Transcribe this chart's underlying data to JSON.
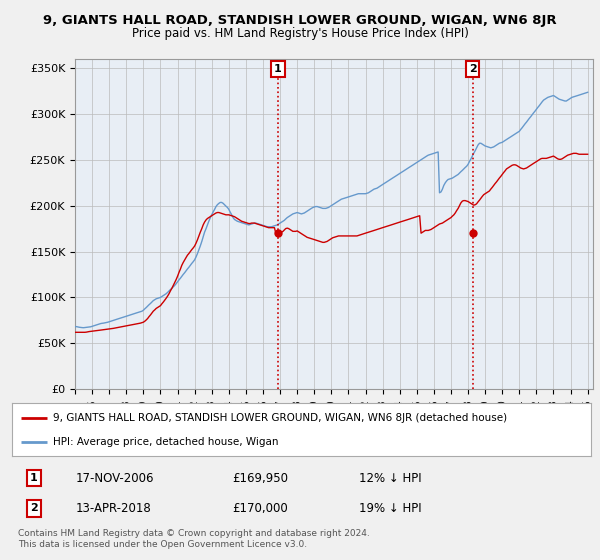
{
  "title": "9, GIANTS HALL ROAD, STANDISH LOWER GROUND, WIGAN, WN6 8JR",
  "subtitle": "Price paid vs. HM Land Registry's House Price Index (HPI)",
  "ylabel_ticks": [
    "£0",
    "£50K",
    "£100K",
    "£150K",
    "£200K",
    "£250K",
    "£300K",
    "£350K"
  ],
  "ytick_vals": [
    0,
    50000,
    100000,
    150000,
    200000,
    250000,
    300000,
    350000
  ],
  "ylim": [
    0,
    360000
  ],
  "xlim_start": 1995.0,
  "xlim_end": 2025.3,
  "sale1_x": 2006.88,
  "sale1_y": 169950,
  "sale2_x": 2018.28,
  "sale2_y": 170000,
  "sale1_date": "17-NOV-2006",
  "sale1_price": "£169,950",
  "sale1_hpi": "12% ↓ HPI",
  "sale2_date": "13-APR-2018",
  "sale2_price": "£170,000",
  "sale2_hpi": "19% ↓ HPI",
  "line_color_red": "#cc0000",
  "line_color_blue": "#6699cc",
  "shade_color": "#dde8f5",
  "background_color": "#f0f0f0",
  "plot_bg": "#e8eef5",
  "legend_line1": "9, GIANTS HALL ROAD, STANDISH LOWER GROUND, WIGAN, WN6 8JR (detached house)",
  "legend_line2": "HPI: Average price, detached house, Wigan",
  "footnote": "Contains HM Land Registry data © Crown copyright and database right 2024.\nThis data is licensed under the Open Government Licence v3.0.",
  "hpi_years": [
    1995.0,
    1995.08,
    1995.17,
    1995.25,
    1995.33,
    1995.42,
    1995.5,
    1995.58,
    1995.67,
    1995.75,
    1995.83,
    1995.92,
    1996.0,
    1996.08,
    1996.17,
    1996.25,
    1996.33,
    1996.42,
    1996.5,
    1996.58,
    1996.67,
    1996.75,
    1996.83,
    1996.92,
    1997.0,
    1997.08,
    1997.17,
    1997.25,
    1997.33,
    1997.42,
    1997.5,
    1997.58,
    1997.67,
    1997.75,
    1997.83,
    1997.92,
    1998.0,
    1998.08,
    1998.17,
    1998.25,
    1998.33,
    1998.42,
    1998.5,
    1998.58,
    1998.67,
    1998.75,
    1998.83,
    1998.92,
    1999.0,
    1999.08,
    1999.17,
    1999.25,
    1999.33,
    1999.42,
    1999.5,
    1999.58,
    1999.67,
    1999.75,
    1999.83,
    1999.92,
    2000.0,
    2000.08,
    2000.17,
    2000.25,
    2000.33,
    2000.42,
    2000.5,
    2000.58,
    2000.67,
    2000.75,
    2000.83,
    2000.92,
    2001.0,
    2001.08,
    2001.17,
    2001.25,
    2001.33,
    2001.42,
    2001.5,
    2001.58,
    2001.67,
    2001.75,
    2001.83,
    2001.92,
    2002.0,
    2002.08,
    2002.17,
    2002.25,
    2002.33,
    2002.42,
    2002.5,
    2002.58,
    2002.67,
    2002.75,
    2002.83,
    2002.92,
    2003.0,
    2003.08,
    2003.17,
    2003.25,
    2003.33,
    2003.42,
    2003.5,
    2003.58,
    2003.67,
    2003.75,
    2003.83,
    2003.92,
    2004.0,
    2004.08,
    2004.17,
    2004.25,
    2004.33,
    2004.42,
    2004.5,
    2004.58,
    2004.67,
    2004.75,
    2004.83,
    2004.92,
    2005.0,
    2005.08,
    2005.17,
    2005.25,
    2005.33,
    2005.42,
    2005.5,
    2005.58,
    2005.67,
    2005.75,
    2005.83,
    2005.92,
    2006.0,
    2006.08,
    2006.17,
    2006.25,
    2006.33,
    2006.42,
    2006.5,
    2006.58,
    2006.67,
    2006.75,
    2006.83,
    2006.92,
    2007.0,
    2007.08,
    2007.17,
    2007.25,
    2007.33,
    2007.42,
    2007.5,
    2007.58,
    2007.67,
    2007.75,
    2007.83,
    2007.92,
    2008.0,
    2008.08,
    2008.17,
    2008.25,
    2008.33,
    2008.42,
    2008.5,
    2008.58,
    2008.67,
    2008.75,
    2008.83,
    2008.92,
    2009.0,
    2009.08,
    2009.17,
    2009.25,
    2009.33,
    2009.42,
    2009.5,
    2009.58,
    2009.67,
    2009.75,
    2009.83,
    2009.92,
    2010.0,
    2010.08,
    2010.17,
    2010.25,
    2010.33,
    2010.42,
    2010.5,
    2010.58,
    2010.67,
    2010.75,
    2010.83,
    2010.92,
    2011.0,
    2011.08,
    2011.17,
    2011.25,
    2011.33,
    2011.42,
    2011.5,
    2011.58,
    2011.67,
    2011.75,
    2011.83,
    2011.92,
    2012.0,
    2012.08,
    2012.17,
    2012.25,
    2012.33,
    2012.42,
    2012.5,
    2012.58,
    2012.67,
    2012.75,
    2012.83,
    2012.92,
    2013.0,
    2013.08,
    2013.17,
    2013.25,
    2013.33,
    2013.42,
    2013.5,
    2013.58,
    2013.67,
    2013.75,
    2013.83,
    2013.92,
    2014.0,
    2014.08,
    2014.17,
    2014.25,
    2014.33,
    2014.42,
    2014.5,
    2014.58,
    2014.67,
    2014.75,
    2014.83,
    2014.92,
    2015.0,
    2015.08,
    2015.17,
    2015.25,
    2015.33,
    2015.42,
    2015.5,
    2015.58,
    2015.67,
    2015.75,
    2015.83,
    2015.92,
    2016.0,
    2016.08,
    2016.17,
    2016.25,
    2016.33,
    2016.42,
    2016.5,
    2016.58,
    2016.67,
    2016.75,
    2016.83,
    2016.92,
    2017.0,
    2017.08,
    2017.17,
    2017.25,
    2017.33,
    2017.42,
    2017.5,
    2017.58,
    2017.67,
    2017.75,
    2017.83,
    2017.92,
    2018.0,
    2018.08,
    2018.17,
    2018.25,
    2018.33,
    2018.42,
    2018.5,
    2018.58,
    2018.67,
    2018.75,
    2018.83,
    2018.92,
    2019.0,
    2019.08,
    2019.17,
    2019.25,
    2019.33,
    2019.42,
    2019.5,
    2019.58,
    2019.67,
    2019.75,
    2019.83,
    2019.92,
    2020.0,
    2020.08,
    2020.17,
    2020.25,
    2020.33,
    2020.42,
    2020.5,
    2020.58,
    2020.67,
    2020.75,
    2020.83,
    2020.92,
    2021.0,
    2021.08,
    2021.17,
    2021.25,
    2021.33,
    2021.42,
    2021.5,
    2021.58,
    2021.67,
    2021.75,
    2021.83,
    2021.92,
    2022.0,
    2022.08,
    2022.17,
    2022.25,
    2022.33,
    2022.42,
    2022.5,
    2022.58,
    2022.67,
    2022.75,
    2022.83,
    2022.92,
    2023.0,
    2023.08,
    2023.17,
    2023.25,
    2023.33,
    2023.42,
    2023.5,
    2023.58,
    2023.67,
    2023.75,
    2023.83,
    2023.92,
    2024.0,
    2024.08,
    2024.17,
    2024.25,
    2024.33,
    2024.42,
    2024.5,
    2024.58,
    2024.67,
    2024.75,
    2024.83,
    2024.92,
    2025.0
  ],
  "hpi_vals": [
    68000,
    68200,
    67800,
    67500,
    67300,
    67100,
    67000,
    67200,
    67400,
    67600,
    67800,
    68000,
    68500,
    69000,
    69500,
    70000,
    70500,
    71000,
    71500,
    71800,
    72000,
    72300,
    72600,
    73000,
    73500,
    74000,
    74500,
    75000,
    75500,
    76000,
    76500,
    77000,
    77500,
    78000,
    78500,
    79000,
    79500,
    80000,
    80500,
    81000,
    81500,
    82000,
    82500,
    83000,
    83500,
    84000,
    84500,
    85000,
    86000,
    87500,
    89000,
    90500,
    92000,
    93500,
    95000,
    96500,
    97500,
    98500,
    99000,
    99500,
    100000,
    101000,
    102000,
    103000,
    104000,
    105500,
    107000,
    108500,
    110000,
    111500,
    113000,
    115000,
    117000,
    119000,
    121000,
    123000,
    125000,
    127000,
    129000,
    131000,
    133000,
    135000,
    137000,
    139000,
    141000,
    144000,
    148000,
    152000,
    156000,
    161000,
    166000,
    171000,
    175000,
    179000,
    183000,
    187000,
    190000,
    193000,
    196000,
    199000,
    201000,
    202500,
    203500,
    203500,
    202500,
    201000,
    199500,
    198000,
    196000,
    193000,
    190000,
    187000,
    185000,
    184000,
    183000,
    182500,
    182000,
    181500,
    181000,
    180500,
    180000,
    179500,
    179000,
    179500,
    180000,
    180500,
    181000,
    181000,
    180500,
    180000,
    179500,
    179000,
    178500,
    178000,
    177500,
    177000,
    177000,
    177000,
    177000,
    177500,
    178000,
    178500,
    179000,
    180000,
    181000,
    182000,
    183000,
    184000,
    185500,
    187000,
    188000,
    189000,
    190000,
    191000,
    191500,
    192000,
    192500,
    192000,
    191500,
    191000,
    191500,
    192000,
    193000,
    194000,
    195000,
    196000,
    197000,
    198000,
    198500,
    199000,
    199000,
    198500,
    198000,
    197500,
    197000,
    197000,
    197000,
    197500,
    198000,
    199000,
    200000,
    201000,
    202000,
    203000,
    204000,
    205000,
    206000,
    207000,
    207500,
    208000,
    208500,
    209000,
    209500,
    210000,
    210500,
    211000,
    211500,
    212000,
    212500,
    213000,
    213000,
    213000,
    213000,
    213000,
    213000,
    213500,
    214000,
    215000,
    216000,
    217000,
    218000,
    218500,
    219000,
    220000,
    221000,
    222000,
    223000,
    224000,
    225000,
    226000,
    227000,
    228000,
    229000,
    230000,
    231000,
    232000,
    233000,
    234000,
    235000,
    236000,
    237000,
    238000,
    239000,
    240000,
    241000,
    242000,
    243000,
    244000,
    245000,
    246000,
    247000,
    248000,
    249000,
    250000,
    251000,
    252000,
    253000,
    254000,
    255000,
    255500,
    256000,
    256500,
    257000,
    257500,
    258000,
    258500,
    214000,
    215000,
    218000,
    222000,
    225000,
    227000,
    228500,
    229000,
    229500,
    230000,
    231000,
    232000,
    233000,
    234000,
    235500,
    237000,
    238500,
    240000,
    241500,
    243000,
    245000,
    248000,
    251000,
    254000,
    257000,
    260000,
    263000,
    266000,
    268000,
    268000,
    267000,
    266000,
    265000,
    264500,
    264000,
    263500,
    263000,
    263500,
    264000,
    265000,
    266000,
    267000,
    268000,
    268500,
    269000,
    270000,
    271000,
    272000,
    273000,
    274000,
    275000,
    276000,
    277000,
    278000,
    279000,
    280000,
    281000,
    283000,
    285000,
    287000,
    289000,
    291000,
    293000,
    295000,
    297000,
    299000,
    301000,
    303000,
    305000,
    307000,
    309000,
    311000,
    313000,
    315000,
    316000,
    317000,
    318000,
    318500,
    319000,
    319500,
    320000,
    319000,
    318000,
    317000,
    316000,
    315500,
    315000,
    314500,
    314000,
    314000,
    315000,
    316000,
    317000,
    318000,
    318500,
    319000,
    319500,
    320000,
    320500,
    321000,
    321500,
    322000,
    322500,
    323000,
    323500
  ],
  "red_years": [
    1995.0,
    1995.08,
    1995.17,
    1995.25,
    1995.33,
    1995.42,
    1995.5,
    1995.58,
    1995.67,
    1995.75,
    1995.83,
    1995.92,
    1996.0,
    1996.08,
    1996.17,
    1996.25,
    1996.33,
    1996.42,
    1996.5,
    1996.58,
    1996.67,
    1996.75,
    1996.83,
    1996.92,
    1997.0,
    1997.08,
    1997.17,
    1997.25,
    1997.33,
    1997.42,
    1997.5,
    1997.58,
    1997.67,
    1997.75,
    1997.83,
    1997.92,
    1998.0,
    1998.08,
    1998.17,
    1998.25,
    1998.33,
    1998.42,
    1998.5,
    1998.58,
    1998.67,
    1998.75,
    1998.83,
    1998.92,
    1999.0,
    1999.08,
    1999.17,
    1999.25,
    1999.33,
    1999.42,
    1999.5,
    1999.58,
    1999.67,
    1999.75,
    1999.83,
    1999.92,
    2000.0,
    2000.08,
    2000.17,
    2000.25,
    2000.33,
    2000.42,
    2000.5,
    2000.58,
    2000.67,
    2000.75,
    2000.83,
    2000.92,
    2001.0,
    2001.08,
    2001.17,
    2001.25,
    2001.33,
    2001.42,
    2001.5,
    2001.58,
    2001.67,
    2001.75,
    2001.83,
    2001.92,
    2002.0,
    2002.08,
    2002.17,
    2002.25,
    2002.33,
    2002.42,
    2002.5,
    2002.58,
    2002.67,
    2002.75,
    2002.83,
    2002.92,
    2003.0,
    2003.08,
    2003.17,
    2003.25,
    2003.33,
    2003.42,
    2003.5,
    2003.58,
    2003.67,
    2003.75,
    2003.83,
    2003.92,
    2004.0,
    2004.08,
    2004.17,
    2004.25,
    2004.33,
    2004.42,
    2004.5,
    2004.58,
    2004.67,
    2004.75,
    2004.83,
    2004.92,
    2005.0,
    2005.08,
    2005.17,
    2005.25,
    2005.33,
    2005.42,
    2005.5,
    2005.58,
    2005.67,
    2005.75,
    2005.83,
    2005.92,
    2006.0,
    2006.08,
    2006.17,
    2006.25,
    2006.33,
    2006.42,
    2006.5,
    2006.58,
    2006.67,
    2006.75,
    2006.83,
    2006.92,
    2007.0,
    2007.08,
    2007.17,
    2007.25,
    2007.33,
    2007.42,
    2007.5,
    2007.58,
    2007.67,
    2007.75,
    2007.83,
    2007.92,
    2008.0,
    2008.08,
    2008.17,
    2008.25,
    2008.33,
    2008.42,
    2008.5,
    2008.58,
    2008.67,
    2008.75,
    2008.83,
    2008.92,
    2009.0,
    2009.08,
    2009.17,
    2009.25,
    2009.33,
    2009.42,
    2009.5,
    2009.58,
    2009.67,
    2009.75,
    2009.83,
    2009.92,
    2010.0,
    2010.08,
    2010.17,
    2010.25,
    2010.33,
    2010.42,
    2010.5,
    2010.58,
    2010.67,
    2010.75,
    2010.83,
    2010.92,
    2011.0,
    2011.08,
    2011.17,
    2011.25,
    2011.33,
    2011.42,
    2011.5,
    2011.58,
    2011.67,
    2011.75,
    2011.83,
    2011.92,
    2012.0,
    2012.08,
    2012.17,
    2012.25,
    2012.33,
    2012.42,
    2012.5,
    2012.58,
    2012.67,
    2012.75,
    2012.83,
    2012.92,
    2013.0,
    2013.08,
    2013.17,
    2013.25,
    2013.33,
    2013.42,
    2013.5,
    2013.58,
    2013.67,
    2013.75,
    2013.83,
    2013.92,
    2014.0,
    2014.08,
    2014.17,
    2014.25,
    2014.33,
    2014.42,
    2014.5,
    2014.58,
    2014.67,
    2014.75,
    2014.83,
    2014.92,
    2015.0,
    2015.08,
    2015.17,
    2015.25,
    2015.33,
    2015.42,
    2015.5,
    2015.58,
    2015.67,
    2015.75,
    2015.83,
    2015.92,
    2016.0,
    2016.08,
    2016.17,
    2016.25,
    2016.33,
    2016.42,
    2016.5,
    2016.58,
    2016.67,
    2016.75,
    2016.83,
    2016.92,
    2017.0,
    2017.08,
    2017.17,
    2017.25,
    2017.33,
    2017.42,
    2017.5,
    2017.58,
    2017.67,
    2017.75,
    2017.83,
    2017.92,
    2018.0,
    2018.08,
    2018.17,
    2018.25,
    2018.33,
    2018.42,
    2018.5,
    2018.58,
    2018.67,
    2018.75,
    2018.83,
    2018.92,
    2019.0,
    2019.08,
    2019.17,
    2019.25,
    2019.33,
    2019.42,
    2019.5,
    2019.58,
    2019.67,
    2019.75,
    2019.83,
    2019.92,
    2020.0,
    2020.08,
    2020.17,
    2020.25,
    2020.33,
    2020.42,
    2020.5,
    2020.58,
    2020.67,
    2020.75,
    2020.83,
    2020.92,
    2021.0,
    2021.08,
    2021.17,
    2021.25,
    2021.33,
    2021.42,
    2021.5,
    2021.58,
    2021.67,
    2021.75,
    2021.83,
    2021.92,
    2022.0,
    2022.08,
    2022.17,
    2022.25,
    2022.33,
    2022.42,
    2022.5,
    2022.58,
    2022.67,
    2022.75,
    2022.83,
    2022.92,
    2023.0,
    2023.08,
    2023.17,
    2023.25,
    2023.33,
    2023.42,
    2023.5,
    2023.58,
    2023.67,
    2023.75,
    2023.83,
    2023.92,
    2024.0,
    2024.08,
    2024.17,
    2024.25,
    2024.33,
    2024.42,
    2024.5,
    2024.58,
    2024.67,
    2024.75,
    2024.83,
    2024.92,
    2025.0
  ],
  "red_vals": [
    62000,
    62000,
    62000,
    62000,
    62000,
    62000,
    62000,
    62000,
    62200,
    62500,
    62800,
    63000,
    63200,
    63400,
    63600,
    63800,
    64000,
    64200,
    64400,
    64600,
    64800,
    65000,
    65200,
    65400,
    65600,
    65800,
    66000,
    66300,
    66600,
    66900,
    67200,
    67500,
    67800,
    68100,
    68400,
    68700,
    69000,
    69300,
    69600,
    69900,
    70200,
    70500,
    70800,
    71100,
    71400,
    71700,
    72000,
    72500,
    73000,
    74000,
    75500,
    77000,
    79000,
    81000,
    83000,
    85000,
    86500,
    88000,
    89000,
    90000,
    91000,
    93000,
    95000,
    97000,
    99000,
    101500,
    104000,
    107000,
    110000,
    113000,
    116000,
    119500,
    123000,
    127000,
    131000,
    135000,
    138000,
    141000,
    143500,
    146000,
    148000,
    150000,
    152000,
    154000,
    156000,
    159000,
    163000,
    167000,
    171000,
    175000,
    179000,
    182000,
    184500,
    186000,
    187000,
    188000,
    189000,
    190000,
    191000,
    192000,
    192500,
    192500,
    192000,
    191500,
    191000,
    190500,
    190000,
    190000,
    190000,
    189500,
    189000,
    188500,
    188000,
    187000,
    186000,
    185000,
    184000,
    183000,
    182500,
    182000,
    181500,
    181000,
    180500,
    180500,
    181000,
    181000,
    181000,
    180500,
    180000,
    179500,
    179000,
    178500,
    178000,
    177500,
    177000,
    176500,
    176000,
    176000,
    176000,
    176000,
    176000,
    169950,
    170000,
    170000,
    170500,
    171000,
    172000,
    173500,
    175000,
    175500,
    175000,
    174000,
    173000,
    172000,
    172000,
    172000,
    172500,
    171500,
    170500,
    169500,
    168500,
    167500,
    166500,
    165500,
    165000,
    164500,
    164000,
    163500,
    163000,
    162500,
    162000,
    161500,
    161000,
    160500,
    160000,
    160000,
    160500,
    161000,
    162000,
    163000,
    164000,
    165000,
    165500,
    166000,
    166500,
    167000,
    167000,
    167000,
    167000,
    167000,
    167000,
    167000,
    167000,
    167000,
    167000,
    167000,
    167000,
    167000,
    167000,
    167500,
    168000,
    168500,
    169000,
    169500,
    170000,
    170500,
    171000,
    171500,
    172000,
    172500,
    173000,
    173500,
    174000,
    174500,
    175000,
    175500,
    176000,
    176500,
    177000,
    177500,
    178000,
    178500,
    179000,
    179500,
    180000,
    180500,
    181000,
    181500,
    182000,
    182500,
    183000,
    183500,
    184000,
    184500,
    185000,
    185500,
    186000,
    186500,
    187000,
    187500,
    188000,
    188500,
    189000,
    170000,
    171000,
    172000,
    173000,
    173000,
    173000,
    173500,
    174000,
    175000,
    176000,
    177000,
    178000,
    179000,
    180000,
    180500,
    181000,
    182000,
    183000,
    184000,
    185000,
    186000,
    187000,
    188500,
    190000,
    192000,
    194500,
    197000,
    200000,
    203000,
    205000,
    205500,
    205500,
    205000,
    204500,
    203500,
    202500,
    201500,
    200500,
    201000,
    202000,
    204000,
    206000,
    208000,
    210000,
    212000,
    213000,
    214000,
    215000,
    216000,
    218000,
    220000,
    222000,
    224000,
    226000,
    228000,
    230000,
    232000,
    234000,
    236000,
    238000,
    240000,
    241000,
    242000,
    243000,
    244000,
    244500,
    244500,
    244000,
    243000,
    242000,
    241000,
    240500,
    240000,
    240500,
    241000,
    242000,
    243000,
    244000,
    245000,
    246000,
    247000,
    248000,
    249000,
    250000,
    251000,
    251500,
    251500,
    251500,
    251500,
    252000,
    252500,
    253000,
    253500,
    254000,
    253000,
    252000,
    251000,
    250500,
    250500,
    251000,
    252000,
    253000,
    254000,
    255000,
    255500,
    256000,
    256500,
    257000,
    257000,
    257000,
    256500,
    256000,
    256000,
    256000,
    256000,
    256000,
    256000,
    256000
  ]
}
